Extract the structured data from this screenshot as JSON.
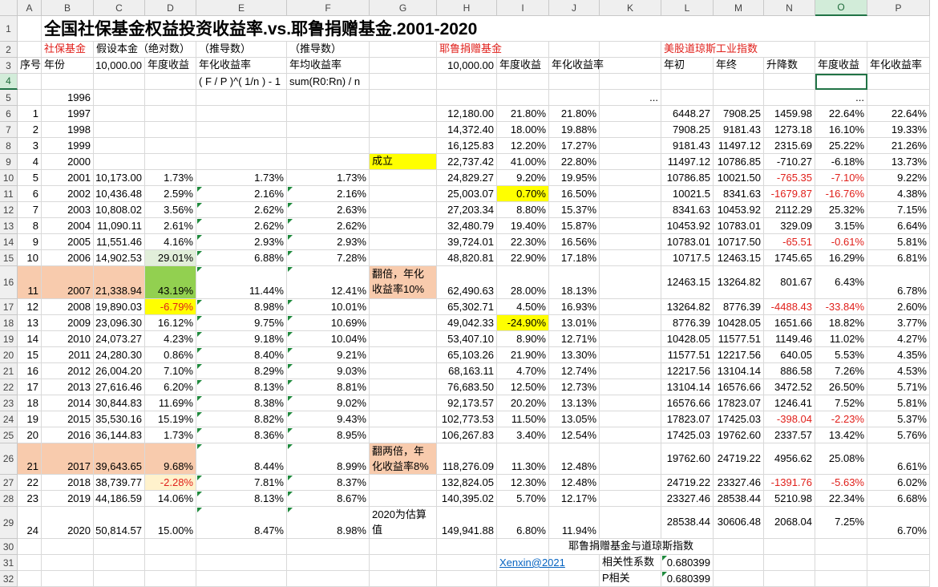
{
  "sheet": {
    "columns": [
      "A",
      "B",
      "C",
      "D",
      "E",
      "F",
      "G",
      "H",
      "I",
      "J",
      "K",
      "L",
      "M",
      "N",
      "O",
      "P"
    ],
    "rows": [
      {
        "n": "1",
        "cells": {
          "B": "全国社保基金权益投资收益率.vs.耶鲁捐赠基金.2001-2020"
        }
      },
      {
        "n": "2",
        "cells": {
          "B": "社保基金",
          "C": "假设本金（绝对数）",
          "E": "（推导数）",
          "F": "（推导数）",
          "H": "耶鲁捐赠基金",
          "L": "美股道琼斯工业指数"
        }
      },
      {
        "n": "3",
        "cells": {
          "A": "序号",
          "B": "年份",
          "C": "10,000.00",
          "D": "年度收益",
          "E": "年化收益率",
          "F": "年均收益率",
          "H": "10,000.00",
          "I": "年度收益",
          "J": "年化收益率",
          "L": "年初",
          "M": "年终",
          "N": "升降数",
          "O": "年度收益",
          "P": "年化收益率"
        }
      },
      {
        "n": "4",
        "cells": {
          "E": "( F / P )^( 1/n ) - 1",
          "F": "sum(R0:Rn) / n"
        }
      },
      {
        "n": "5",
        "cells": {
          "B": "1996",
          "K": "...",
          "O": "..."
        }
      },
      {
        "n": "6",
        "cells": {
          "A": "1",
          "B": "1997",
          "H": "12,180.00",
          "I": "21.80%",
          "J": "21.80%",
          "L": "6448.27",
          "M": "7908.25",
          "N": "1459.98",
          "O": "22.64%",
          "P": "22.64%"
        }
      },
      {
        "n": "7",
        "cells": {
          "A": "2",
          "B": "1998",
          "H": "14,372.40",
          "I": "18.00%",
          "J": "19.88%",
          "L": "7908.25",
          "M": "9181.43",
          "N": "1273.18",
          "O": "16.10%",
          "P": "19.33%"
        }
      },
      {
        "n": "8",
        "cells": {
          "A": "3",
          "B": "1999",
          "H": "16,125.83",
          "I": "12.20%",
          "J": "17.27%",
          "L": "9181.43",
          "M": "11497.12",
          "N": "2315.69",
          "O": "25.22%",
          "P": "21.26%"
        }
      },
      {
        "n": "9",
        "cells": {
          "A": "4",
          "B": "2000",
          "G": "成立",
          "H": "22,737.42",
          "I": "41.00%",
          "J": "22.80%",
          "L": "11497.12",
          "M": "10786.85",
          "N": "-710.27",
          "O": "-6.18%",
          "P": "13.73%"
        }
      },
      {
        "n": "10",
        "cells": {
          "A": "5",
          "B": "2001",
          "C": "10,173.00",
          "D": "1.73%",
          "E": "1.73%",
          "F": "1.73%",
          "H": "24,829.27",
          "I": "9.20%",
          "J": "19.95%",
          "L": "10786.85",
          "M": "10021.50",
          "N": "-765.35",
          "O": "-7.10%",
          "P": "9.22%"
        }
      },
      {
        "n": "11",
        "cells": {
          "A": "6",
          "B": "2002",
          "C": "10,436.48",
          "D": "2.59%",
          "E": "2.16%",
          "F": "2.16%",
          "H": "25,003.07",
          "I": "0.70%",
          "J": "16.50%",
          "L": "10021.5",
          "M": "8341.63",
          "N": "-1679.87",
          "O": "-16.76%",
          "P": "4.38%"
        }
      },
      {
        "n": "12",
        "cells": {
          "A": "7",
          "B": "2003",
          "C": "10,808.02",
          "D": "3.56%",
          "E": "2.62%",
          "F": "2.63%",
          "H": "27,203.34",
          "I": "8.80%",
          "J": "15.37%",
          "L": "8341.63",
          "M": "10453.92",
          "N": "2112.29",
          "O": "25.32%",
          "P": "7.15%"
        }
      },
      {
        "n": "13",
        "cells": {
          "A": "8",
          "B": "2004",
          "C": "11,090.11",
          "D": "2.61%",
          "E": "2.62%",
          "F": "2.62%",
          "H": "32,480.79",
          "I": "19.40%",
          "J": "15.87%",
          "L": "10453.92",
          "M": "10783.01",
          "N": "329.09",
          "O": "3.15%",
          "P": "6.64%"
        }
      },
      {
        "n": "14",
        "cells": {
          "A": "9",
          "B": "2005",
          "C": "11,551.46",
          "D": "4.16%",
          "E": "2.93%",
          "F": "2.93%",
          "H": "39,724.01",
          "I": "22.30%",
          "J": "16.56%",
          "L": "10783.01",
          "M": "10717.50",
          "N": "-65.51",
          "O": "-0.61%",
          "P": "5.81%"
        }
      },
      {
        "n": "15",
        "cells": {
          "A": "10",
          "B": "2006",
          "C": "14,902.53",
          "D": "29.01%",
          "E": "6.88%",
          "F": "7.28%",
          "H": "48,820.81",
          "I": "22.90%",
          "J": "17.18%",
          "L": "10717.5",
          "M": "12463.15",
          "N": "1745.65",
          "O": "16.29%",
          "P": "6.81%"
        }
      },
      {
        "n": "16",
        "cells": {
          "A": "11",
          "B": "2007",
          "C": "21,338.94",
          "D": "43.19%",
          "E": "11.44%",
          "F": "12.41%",
          "G": "翻倍，年化收益率10%",
          "H": "62,490.63",
          "I": "28.00%",
          "J": "18.13%",
          "L": "12463.15",
          "M": "13264.82",
          "N": "801.67",
          "O": "6.43%",
          "P": "6.78%"
        }
      },
      {
        "n": "17",
        "cells": {
          "A": "12",
          "B": "2008",
          "C": "19,890.03",
          "D": "-6.79%",
          "E": "8.98%",
          "F": "10.01%",
          "H": "65,302.71",
          "I": "4.50%",
          "J": "16.93%",
          "L": "13264.82",
          "M": "8776.39",
          "N": "-4488.43",
          "O": "-33.84%",
          "P": "2.60%"
        }
      },
      {
        "n": "18",
        "cells": {
          "A": "13",
          "B": "2009",
          "C": "23,096.30",
          "D": "16.12%",
          "E": "9.75%",
          "F": "10.69%",
          "H": "49,042.33",
          "I": "-24.90%",
          "J": "13.01%",
          "L": "8776.39",
          "M": "10428.05",
          "N": "1651.66",
          "O": "18.82%",
          "P": "3.77%"
        }
      },
      {
        "n": "19",
        "cells": {
          "A": "14",
          "B": "2010",
          "C": "24,073.27",
          "D": "4.23%",
          "E": "9.18%",
          "F": "10.04%",
          "H": "53,407.10",
          "I": "8.90%",
          "J": "12.71%",
          "L": "10428.05",
          "M": "11577.51",
          "N": "1149.46",
          "O": "11.02%",
          "P": "4.27%"
        }
      },
      {
        "n": "20",
        "cells": {
          "A": "15",
          "B": "2011",
          "C": "24,280.30",
          "D": "0.86%",
          "E": "8.40%",
          "F": "9.21%",
          "H": "65,103.26",
          "I": "21.90%",
          "J": "13.30%",
          "L": "11577.51",
          "M": "12217.56",
          "N": "640.05",
          "O": "5.53%",
          "P": "4.35%"
        }
      },
      {
        "n": "21",
        "cells": {
          "A": "16",
          "B": "2012",
          "C": "26,004.20",
          "D": "7.10%",
          "E": "8.29%",
          "F": "9.03%",
          "H": "68,163.11",
          "I": "4.70%",
          "J": "12.74%",
          "L": "12217.56",
          "M": "13104.14",
          "N": "886.58",
          "O": "7.26%",
          "P": "4.53%"
        }
      },
      {
        "n": "22",
        "cells": {
          "A": "17",
          "B": "2013",
          "C": "27,616.46",
          "D": "6.20%",
          "E": "8.13%",
          "F": "8.81%",
          "H": "76,683.50",
          "I": "12.50%",
          "J": "12.73%",
          "L": "13104.14",
          "M": "16576.66",
          "N": "3472.52",
          "O": "26.50%",
          "P": "5.71%"
        }
      },
      {
        "n": "23",
        "cells": {
          "A": "18",
          "B": "2014",
          "C": "30,844.83",
          "D": "11.69%",
          "E": "8.38%",
          "F": "9.02%",
          "H": "92,173.57",
          "I": "20.20%",
          "J": "13.13%",
          "L": "16576.66",
          "M": "17823.07",
          "N": "1246.41",
          "O": "7.52%",
          "P": "5.81%"
        }
      },
      {
        "n": "24",
        "cells": {
          "A": "19",
          "B": "2015",
          "C": "35,530.16",
          "D": "15.19%",
          "E": "8.82%",
          "F": "9.43%",
          "H": "102,773.53",
          "I": "11.50%",
          "J": "13.05%",
          "L": "17823.07",
          "M": "17425.03",
          "N": "-398.04",
          "O": "-2.23%",
          "P": "5.37%"
        }
      },
      {
        "n": "25",
        "cells": {
          "A": "20",
          "B": "2016",
          "C": "36,144.83",
          "D": "1.73%",
          "E": "8.36%",
          "F": "8.95%",
          "H": "106,267.83",
          "I": "3.40%",
          "J": "12.54%",
          "L": "17425.03",
          "M": "19762.60",
          "N": "2337.57",
          "O": "13.42%",
          "P": "5.76%"
        }
      },
      {
        "n": "26",
        "cells": {
          "A": "21",
          "B": "2017",
          "C": "39,643.65",
          "D": "9.68%",
          "E": "8.44%",
          "F": "8.99%",
          "G": "翻两倍，年化收益率8%",
          "H": "118,276.09",
          "I": "11.30%",
          "J": "12.48%",
          "L": "19762.60",
          "M": "24719.22",
          "N": "4956.62",
          "O": "25.08%",
          "P": "6.61%"
        }
      },
      {
        "n": "27",
        "cells": {
          "A": "22",
          "B": "2018",
          "C": "38,739.77",
          "D": "-2.28%",
          "E": "7.81%",
          "F": "8.37%",
          "H": "132,824.05",
          "I": "12.30%",
          "J": "12.48%",
          "L": "24719.22",
          "M": "23327.46",
          "N": "-1391.76",
          "O": "-5.63%",
          "P": "6.02%"
        }
      },
      {
        "n": "28",
        "cells": {
          "A": "23",
          "B": "2019",
          "C": "44,186.59",
          "D": "14.06%",
          "E": "8.13%",
          "F": "8.67%",
          "H": "140,395.02",
          "I": "5.70%",
          "J": "12.17%",
          "L": "23327.46",
          "M": "28538.44",
          "N": "5210.98",
          "O": "22.34%",
          "P": "6.68%"
        }
      },
      {
        "n": "29",
        "cells": {
          "A": "24",
          "B": "2020",
          "C": "50,814.57",
          "D": "15.00%",
          "E": "8.47%",
          "F": "8.98%",
          "G": "2020为估算值",
          "H": "149,941.88",
          "I": "6.80%",
          "J": "11.94%",
          "L": "28538.44",
          "M": "30606.48",
          "N": "2068.04",
          "O": "7.25%",
          "P": "6.70%"
        }
      },
      {
        "n": "30",
        "cells": {
          "J": "耶鲁捐赠基金与道琼斯指数"
        }
      },
      {
        "n": "31",
        "cells": {
          "I": "Xenxin@2021",
          "K": "相关性系数",
          "L": "0.680399"
        }
      },
      {
        "n": "32",
        "cells": {
          "K": "P相关",
          "L": "0.680399"
        }
      }
    ]
  }
}
